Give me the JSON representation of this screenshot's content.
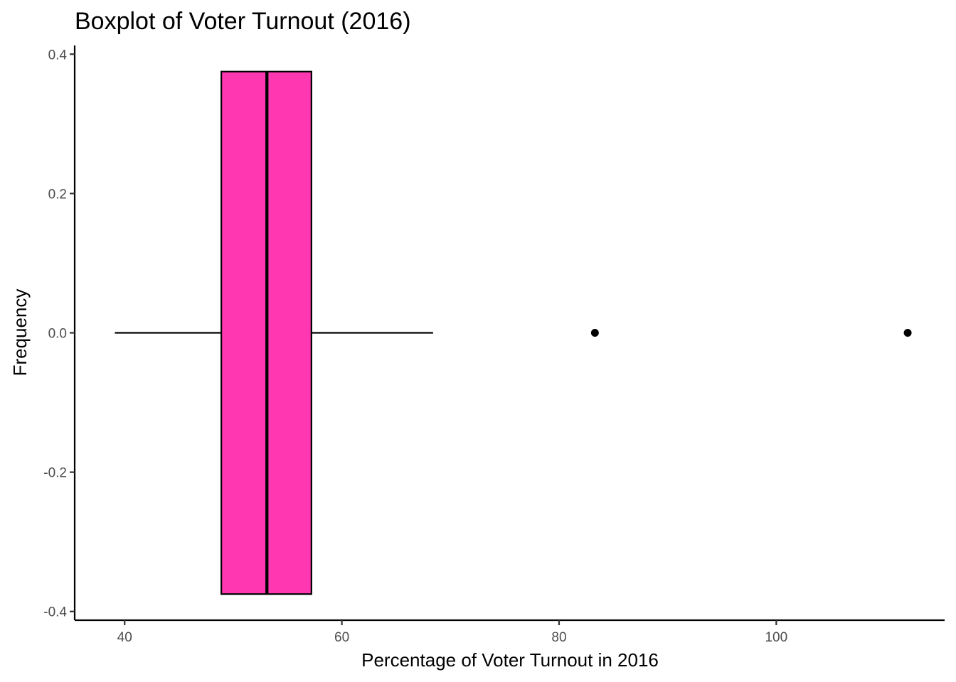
{
  "chart_data": {
    "type": "boxplot",
    "title": "Boxplot of Voter Turnout (2016)",
    "xlabel": "Percentage of Voter Turnout in 2016",
    "ylabel": "Frequency",
    "xlim": [
      35.4,
      115.5
    ],
    "ylim": [
      -0.4125,
      0.4125
    ],
    "x_ticks": [
      40,
      60,
      80,
      100
    ],
    "y_ticks": [
      -0.4,
      -0.2,
      0.0,
      0.2,
      0.4
    ],
    "y_tick_labels": [
      "-0.4",
      "-0.2",
      "0.0",
      "0.2",
      "0.4"
    ],
    "grid": false,
    "legend": "none",
    "box": {
      "min": 39.1,
      "q1": 48.9,
      "median": 53.1,
      "q3": 57.2,
      "max": 68.4,
      "center": 0.0,
      "half_width": 0.375,
      "outliers": [
        83.3,
        112.1
      ]
    },
    "colors": {
      "box_fill": "#ff37b0",
      "stroke": "#000000"
    }
  }
}
